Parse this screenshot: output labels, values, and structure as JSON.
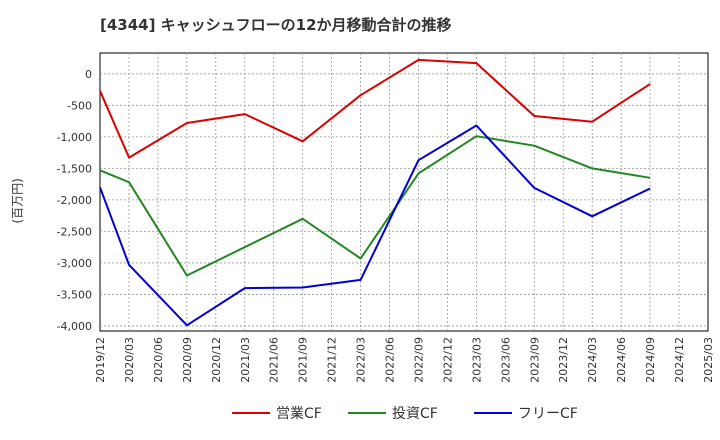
{
  "chart_data": {
    "type": "line",
    "title": "[4344]  キャッシュフローの12か月移動合計の推移",
    "ylabel": "(百万円)",
    "xlabel": "",
    "categories": [
      "2019/12",
      "2020/03",
      "2020/06",
      "2020/09",
      "2020/12",
      "2021/03",
      "2021/06",
      "2021/09",
      "2021/12",
      "2022/03",
      "2022/06",
      "2022/09",
      "2022/12",
      "2023/03",
      "2023/06",
      "2023/09",
      "2023/12",
      "2024/03",
      "2024/06",
      "2024/09",
      "2024/12",
      "2025/03"
    ],
    "yticks": [
      0,
      -500,
      -1000,
      -1500,
      -2000,
      -2500,
      -3000,
      -3500,
      -4000
    ],
    "ytick_labels": [
      "0",
      "-500",
      "-1,000",
      "-1,500",
      "-2,000",
      "-2,500",
      "-3,000",
      "-3,500",
      "-4,000"
    ],
    "ylim": [
      -4080,
      330
    ],
    "grid": true,
    "legend_position": "bottom",
    "series": [
      {
        "name": "営業CF",
        "color": "#dd0000",
        "values": [
          -270,
          -1330,
          null,
          -780,
          null,
          -640,
          null,
          -1070,
          null,
          -340,
          null,
          220,
          null,
          170,
          null,
          -670,
          null,
          -760,
          null,
          -160,
          null,
          null
        ]
      },
      {
        "name": "投資CF",
        "color": "#228822",
        "values": [
          -1530,
          -1720,
          null,
          -3200,
          null,
          null,
          null,
          -2300,
          null,
          -2930,
          null,
          -1580,
          null,
          -990,
          null,
          -1140,
          null,
          -1500,
          null,
          -1650,
          null,
          null
        ]
      },
      {
        "name": "フリーCF",
        "color": "#0000dd",
        "values": [
          -1800,
          -3030,
          null,
          -3990,
          null,
          -3400,
          null,
          -3390,
          null,
          -3270,
          null,
          -1370,
          null,
          -820,
          null,
          -1810,
          null,
          -2260,
          null,
          -1820,
          null,
          null
        ]
      }
    ]
  }
}
